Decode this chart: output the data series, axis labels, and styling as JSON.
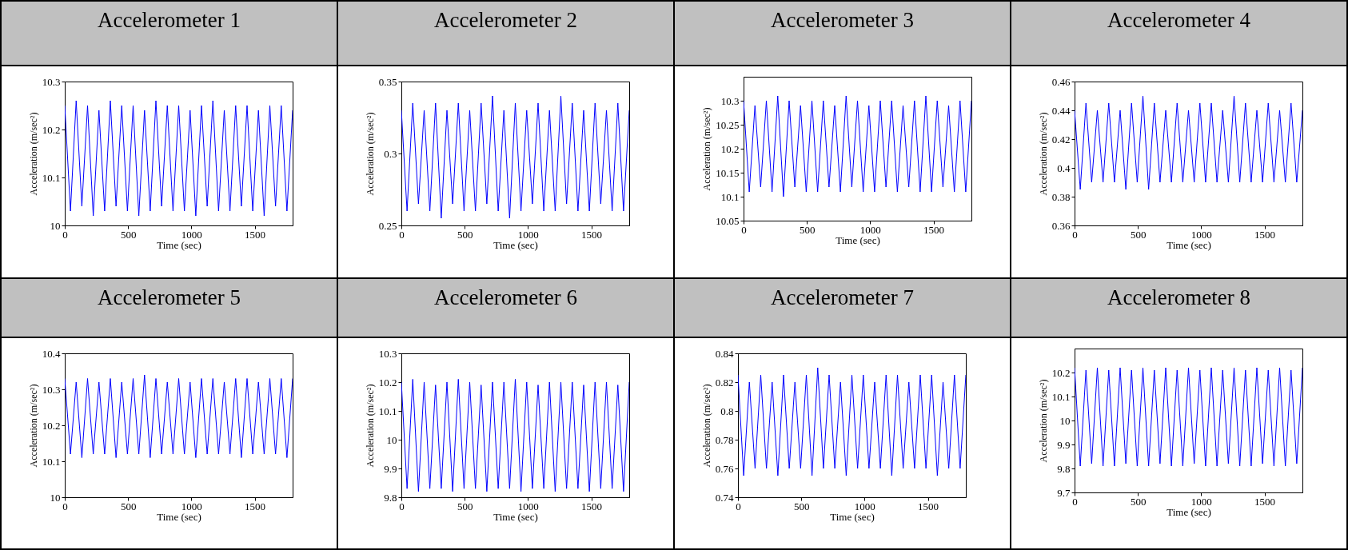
{
  "chart_data": [
    {
      "type": "line",
      "title": "Accelerometer 1",
      "xlabel": "Time (sec)",
      "ylabel": "Acceleration (m/sec²)",
      "xlim": [
        0,
        1800
      ],
      "xticks": [
        0,
        500,
        1000,
        1500
      ],
      "ylim": [
        10,
        10.3
      ],
      "yticks": [
        10,
        10.1,
        10.2,
        10.3
      ],
      "grid": false,
      "x": [
        0,
        45,
        90,
        135,
        180,
        225,
        270,
        315,
        360,
        405,
        450,
        495,
        540,
        585,
        630,
        675,
        720,
        765,
        810,
        855,
        900,
        945,
        990,
        1035,
        1080,
        1125,
        1170,
        1215,
        1260,
        1305,
        1350,
        1395,
        1440,
        1485,
        1530,
        1575,
        1620,
        1665,
        1710,
        1755,
        1800
      ],
      "series": [
        {
          "color": "#0000ff",
          "values": [
            10.25,
            10.03,
            10.26,
            10.04,
            10.25,
            10.02,
            10.24,
            10.03,
            10.26,
            10.04,
            10.25,
            10.03,
            10.25,
            10.02,
            10.24,
            10.03,
            10.26,
            10.04,
            10.25,
            10.03,
            10.25,
            10.03,
            10.24,
            10.02,
            10.25,
            10.04,
            10.26,
            10.03,
            10.24,
            10.03,
            10.25,
            10.04,
            10.25,
            10.03,
            10.24,
            10.02,
            10.25,
            10.04,
            10.25,
            10.03,
            10.24
          ]
        }
      ]
    },
    {
      "type": "line",
      "title": "Accelerometer 2",
      "xlabel": "Time (sec)",
      "ylabel": "Acceleration (m/sec²)",
      "xlim": [
        0,
        1800
      ],
      "xticks": [
        0,
        500,
        1000,
        1500
      ],
      "ylim": [
        0.25,
        0.35
      ],
      "yticks": [
        0.25,
        0.3,
        0.35
      ],
      "grid": false,
      "x": [
        0,
        45,
        90,
        135,
        180,
        225,
        270,
        315,
        360,
        405,
        450,
        495,
        540,
        585,
        630,
        675,
        720,
        765,
        810,
        855,
        900,
        945,
        990,
        1035,
        1080,
        1125,
        1170,
        1215,
        1260,
        1305,
        1350,
        1395,
        1440,
        1485,
        1530,
        1575,
        1620,
        1665,
        1710,
        1755,
        1800
      ],
      "series": [
        {
          "color": "#0000ff",
          "values": [
            0.33,
            0.26,
            0.335,
            0.265,
            0.33,
            0.26,
            0.335,
            0.255,
            0.33,
            0.265,
            0.335,
            0.26,
            0.33,
            0.26,
            0.335,
            0.265,
            0.34,
            0.26,
            0.33,
            0.255,
            0.335,
            0.26,
            0.33,
            0.265,
            0.335,
            0.26,
            0.33,
            0.26,
            0.34,
            0.265,
            0.335,
            0.26,
            0.33,
            0.26,
            0.335,
            0.265,
            0.33,
            0.26,
            0.335,
            0.26,
            0.33
          ]
        }
      ]
    },
    {
      "type": "line",
      "title": "Accelerometer 3",
      "xlabel": "Time (sec)",
      "ylabel": "Acceleration (m/sec²)",
      "xlim": [
        0,
        1800
      ],
      "xticks": [
        0,
        500,
        1000,
        1500
      ],
      "ylim": [
        10.05,
        10.35
      ],
      "yticks": [
        10.05,
        10.1,
        10.15,
        10.2,
        10.25,
        10.3
      ],
      "grid": false,
      "x": [
        0,
        45,
        90,
        135,
        180,
        225,
        270,
        315,
        360,
        405,
        450,
        495,
        540,
        585,
        630,
        675,
        720,
        765,
        810,
        855,
        900,
        945,
        990,
        1035,
        1080,
        1125,
        1170,
        1215,
        1260,
        1305,
        1350,
        1395,
        1440,
        1485,
        1530,
        1575,
        1620,
        1665,
        1710,
        1755,
        1800
      ],
      "series": [
        {
          "color": "#0000ff",
          "values": [
            10.3,
            10.11,
            10.29,
            10.12,
            10.3,
            10.11,
            10.31,
            10.1,
            10.3,
            10.12,
            10.29,
            10.11,
            10.3,
            10.11,
            10.3,
            10.12,
            10.29,
            10.11,
            10.31,
            10.12,
            10.3,
            10.11,
            10.29,
            10.11,
            10.3,
            10.12,
            10.3,
            10.11,
            10.29,
            10.12,
            10.3,
            10.11,
            10.31,
            10.11,
            10.3,
            10.12,
            10.29,
            10.11,
            10.3,
            10.11,
            10.3
          ]
        }
      ]
    },
    {
      "type": "line",
      "title": "Accelerometer 4",
      "xlabel": "Time (sec)",
      "ylabel": "Acceleration (m/sec²)",
      "xlim": [
        0,
        1800
      ],
      "xticks": [
        0,
        500,
        1000,
        1500
      ],
      "ylim": [
        0.36,
        0.46
      ],
      "yticks": [
        0.36,
        0.38,
        0.4,
        0.42,
        0.44,
        0.46
      ],
      "grid": false,
      "x": [
        0,
        45,
        90,
        135,
        180,
        225,
        270,
        315,
        360,
        405,
        450,
        495,
        540,
        585,
        630,
        675,
        720,
        765,
        810,
        855,
        900,
        945,
        990,
        1035,
        1080,
        1125,
        1170,
        1215,
        1260,
        1305,
        1350,
        1395,
        1440,
        1485,
        1530,
        1575,
        1620,
        1665,
        1710,
        1755,
        1800
      ],
      "series": [
        {
          "color": "#0000ff",
          "values": [
            0.44,
            0.385,
            0.445,
            0.39,
            0.44,
            0.39,
            0.445,
            0.39,
            0.44,
            0.385,
            0.445,
            0.39,
            0.45,
            0.385,
            0.445,
            0.39,
            0.44,
            0.39,
            0.445,
            0.39,
            0.44,
            0.39,
            0.445,
            0.39,
            0.445,
            0.39,
            0.44,
            0.39,
            0.45,
            0.39,
            0.445,
            0.39,
            0.44,
            0.39,
            0.445,
            0.39,
            0.44,
            0.39,
            0.445,
            0.39,
            0.44
          ]
        }
      ]
    },
    {
      "type": "line",
      "title": "Accelerometer 5",
      "xlabel": "Time (sec)",
      "ylabel": "Acceleration (m/sec²)",
      "xlim": [
        0,
        1800
      ],
      "xticks": [
        0,
        500,
        1000,
        1500
      ],
      "ylim": [
        10,
        10.4
      ],
      "yticks": [
        10,
        10.1,
        10.2,
        10.3,
        10.4
      ],
      "grid": false,
      "x": [
        0,
        45,
        90,
        135,
        180,
        225,
        270,
        315,
        360,
        405,
        450,
        495,
        540,
        585,
        630,
        675,
        720,
        765,
        810,
        855,
        900,
        945,
        990,
        1035,
        1080,
        1125,
        1170,
        1215,
        1260,
        1305,
        1350,
        1395,
        1440,
        1485,
        1530,
        1575,
        1620,
        1665,
        1710,
        1755,
        1800
      ],
      "series": [
        {
          "color": "#0000ff",
          "values": [
            10.33,
            10.12,
            10.32,
            10.11,
            10.33,
            10.12,
            10.32,
            10.12,
            10.33,
            10.11,
            10.32,
            10.12,
            10.33,
            10.12,
            10.34,
            10.11,
            10.33,
            10.12,
            10.32,
            10.12,
            10.33,
            10.12,
            10.32,
            10.11,
            10.33,
            10.12,
            10.33,
            10.12,
            10.32,
            10.12,
            10.33,
            10.11,
            10.33,
            10.12,
            10.32,
            10.12,
            10.33,
            10.12,
            10.33,
            10.11,
            10.33
          ]
        }
      ]
    },
    {
      "type": "line",
      "title": "Accelerometer 6",
      "xlabel": "Time (sec)",
      "ylabel": "Acceleration (m/sec²)",
      "xlim": [
        0,
        1800
      ],
      "xticks": [
        0,
        500,
        1000,
        1500
      ],
      "ylim": [
        9.8,
        10.3
      ],
      "yticks": [
        9.8,
        9.9,
        10,
        10.1,
        10.2,
        10.3
      ],
      "grid": false,
      "x": [
        0,
        45,
        90,
        135,
        180,
        225,
        270,
        315,
        360,
        405,
        450,
        495,
        540,
        585,
        630,
        675,
        720,
        765,
        810,
        855,
        900,
        945,
        990,
        1035,
        1080,
        1125,
        1170,
        1215,
        1260,
        1305,
        1350,
        1395,
        1440,
        1485,
        1530,
        1575,
        1620,
        1665,
        1710,
        1755,
        1800
      ],
      "series": [
        {
          "color": "#0000ff",
          "values": [
            10.2,
            9.83,
            10.21,
            9.82,
            10.2,
            9.83,
            10.19,
            9.83,
            10.2,
            9.82,
            10.21,
            9.83,
            10.2,
            9.83,
            10.19,
            9.82,
            10.2,
            9.83,
            10.2,
            9.83,
            10.21,
            9.82,
            10.2,
            9.83,
            10.19,
            9.83,
            10.2,
            9.82,
            10.2,
            9.83,
            10.2,
            9.83,
            10.19,
            9.82,
            10.2,
            9.83,
            10.2,
            9.83,
            10.19,
            9.82,
            10.2
          ]
        }
      ]
    },
    {
      "type": "line",
      "title": "Accelerometer 7",
      "xlabel": "Time (sec)",
      "ylabel": "Acceleration (m/sec²)",
      "xlim": [
        0,
        1800
      ],
      "xticks": [
        0,
        500,
        1000,
        1500
      ],
      "ylim": [
        0.74,
        0.84
      ],
      "yticks": [
        0.74,
        0.76,
        0.78,
        0.8,
        0.82,
        0.84
      ],
      "grid": false,
      "x": [
        0,
        45,
        90,
        135,
        180,
        225,
        270,
        315,
        360,
        405,
        450,
        495,
        540,
        585,
        630,
        675,
        720,
        765,
        810,
        855,
        900,
        945,
        990,
        1035,
        1080,
        1125,
        1170,
        1215,
        1260,
        1305,
        1350,
        1395,
        1440,
        1485,
        1530,
        1575,
        1620,
        1665,
        1710,
        1755,
        1800
      ],
      "series": [
        {
          "color": "#0000ff",
          "values": [
            0.825,
            0.755,
            0.82,
            0.76,
            0.825,
            0.76,
            0.82,
            0.755,
            0.825,
            0.76,
            0.82,
            0.76,
            0.825,
            0.755,
            0.83,
            0.76,
            0.825,
            0.76,
            0.82,
            0.755,
            0.825,
            0.76,
            0.825,
            0.76,
            0.82,
            0.76,
            0.825,
            0.755,
            0.825,
            0.76,
            0.82,
            0.76,
            0.825,
            0.76,
            0.825,
            0.755,
            0.82,
            0.76,
            0.825,
            0.76,
            0.825
          ]
        }
      ]
    },
    {
      "type": "line",
      "title": "Accelerometer 8",
      "xlabel": "Time (sec)",
      "ylabel": "Acceleration (m/sec²)",
      "xlim": [
        0,
        1800
      ],
      "xticks": [
        0,
        500,
        1000,
        1500
      ],
      "ylim": [
        9.7,
        10.3
      ],
      "yticks": [
        9.7,
        9.8,
        9.9,
        10,
        10.1,
        10.2
      ],
      "grid": false,
      "x": [
        0,
        45,
        90,
        135,
        180,
        225,
        270,
        315,
        360,
        405,
        450,
        495,
        540,
        585,
        630,
        675,
        720,
        765,
        810,
        855,
        900,
        945,
        990,
        1035,
        1080,
        1125,
        1170,
        1215,
        1260,
        1305,
        1350,
        1395,
        1440,
        1485,
        1530,
        1575,
        1620,
        1665,
        1710,
        1755,
        1800
      ],
      "series": [
        {
          "color": "#0000ff",
          "values": [
            10.22,
            9.81,
            10.21,
            9.82,
            10.22,
            9.81,
            10.21,
            9.81,
            10.22,
            9.82,
            10.21,
            9.81,
            10.22,
            9.81,
            10.21,
            9.82,
            10.22,
            9.81,
            10.21,
            9.81,
            10.22,
            9.82,
            10.21,
            9.81,
            10.22,
            9.81,
            10.21,
            9.82,
            10.22,
            9.81,
            10.21,
            9.81,
            10.22,
            9.82,
            10.21,
            9.81,
            10.22,
            9.81,
            10.21,
            9.82,
            10.22
          ]
        }
      ]
    }
  ]
}
